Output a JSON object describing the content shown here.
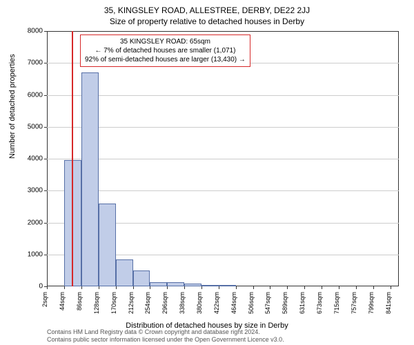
{
  "title_main": "35, KINGSLEY ROAD, ALLESTREE, DERBY, DE22 2JJ",
  "title_sub": "Size of property relative to detached houses in Derby",
  "y_label": "Number of detached properties",
  "x_label": "Distribution of detached houses by size in Derby",
  "chart": {
    "type": "histogram",
    "bar_color": "#c1cde8",
    "bar_border_color": "#566fa6",
    "marker_color": "#d62728",
    "background_color": "#ffffff",
    "grid_color": "#cccccc",
    "border_color": "#333333",
    "ylim": [
      0,
      8000
    ],
    "yticks": [
      0,
      1000,
      2000,
      3000,
      4000,
      5000,
      6000,
      7000,
      8000
    ],
    "xticks": [
      "2sqm",
      "44sqm",
      "86sqm",
      "128sqm",
      "170sqm",
      "212sqm",
      "254sqm",
      "296sqm",
      "338sqm",
      "380sqm",
      "422sqm",
      "464sqm",
      "506sqm",
      "547sqm",
      "589sqm",
      "631sqm",
      "673sqm",
      "715sqm",
      "757sqm",
      "799sqm",
      "841sqm"
    ],
    "xtick_values": [
      2,
      44,
      86,
      128,
      170,
      212,
      254,
      296,
      338,
      380,
      422,
      464,
      506,
      547,
      589,
      631,
      673,
      715,
      757,
      799,
      841
    ],
    "x_range": [
      2,
      862
    ],
    "marker_value": 65,
    "bin_width": 42,
    "bins": [
      {
        "start": 2,
        "count": 0
      },
      {
        "start": 44,
        "count": 3950
      },
      {
        "start": 86,
        "count": 6700
      },
      {
        "start": 128,
        "count": 2600
      },
      {
        "start": 170,
        "count": 850
      },
      {
        "start": 212,
        "count": 500
      },
      {
        "start": 254,
        "count": 140
      },
      {
        "start": 296,
        "count": 120
      },
      {
        "start": 338,
        "count": 80
      },
      {
        "start": 380,
        "count": 40
      },
      {
        "start": 422,
        "count": 20
      },
      {
        "start": 464,
        "count": 0
      },
      {
        "start": 506,
        "count": 0
      },
      {
        "start": 547,
        "count": 0
      },
      {
        "start": 589,
        "count": 0
      },
      {
        "start": 631,
        "count": 0
      },
      {
        "start": 673,
        "count": 0
      },
      {
        "start": 715,
        "count": 0
      },
      {
        "start": 757,
        "count": 0
      },
      {
        "start": 799,
        "count": 0
      }
    ]
  },
  "highlight": {
    "line1": "35 KINGSLEY ROAD: 65sqm",
    "line2": "← 7% of detached houses are smaller (1,071)",
    "line3": "92% of semi-detached houses are larger (13,430) →",
    "border_color": "#d62728"
  },
  "copyright": {
    "line1": "Contains HM Land Registry data © Crown copyright and database right 2024.",
    "line2": "Contains public sector information licensed under the Open Government Licence v3.0."
  }
}
